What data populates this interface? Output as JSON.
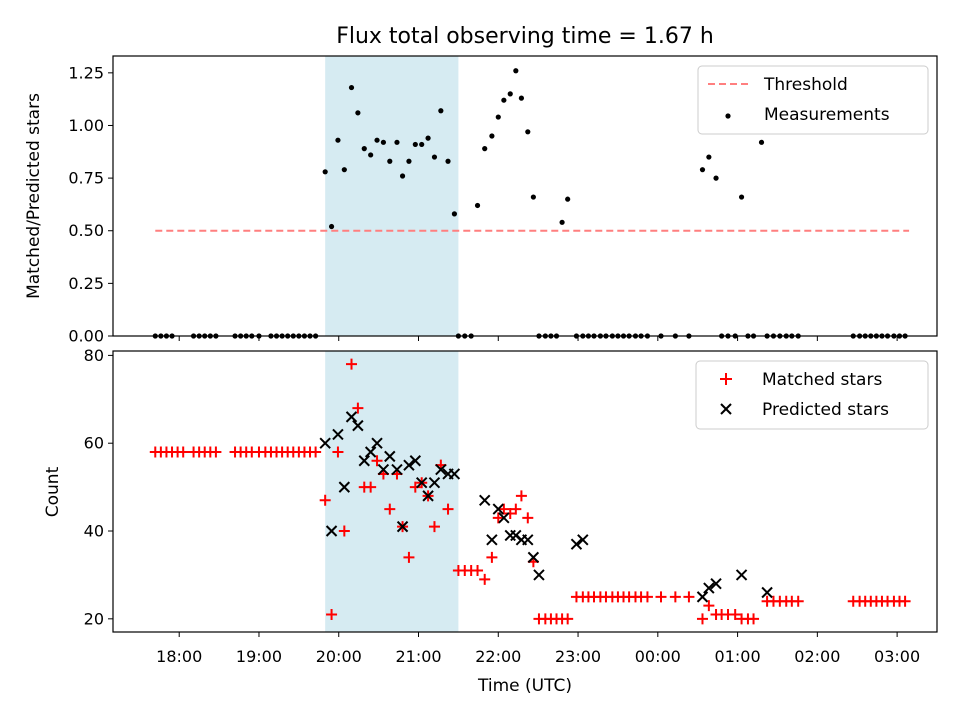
{
  "chart_data": [
    {
      "type": "scatter",
      "title": "Flux total observing time = 1.67 h",
      "xlabel": "",
      "ylabel": "Matched/Predicted stars",
      "xlim": [
        -0.83,
        9.5
      ],
      "ylim": [
        0,
        1.33
      ],
      "xticks": [
        0,
        1,
        2,
        3,
        4,
        5,
        6,
        7,
        8,
        9
      ],
      "yticks": [
        0.0,
        0.25,
        0.5,
        0.75,
        1.0,
        1.25
      ],
      "ytick_labels": [
        "0.00",
        "0.25",
        "0.50",
        "0.75",
        "1.00",
        "1.25"
      ],
      "shaded_region": {
        "x0": 1.83,
        "x1": 3.5,
        "color": "#add8e6"
      },
      "threshold": {
        "name": "Threshold",
        "y": 0.5,
        "x0": -0.3,
        "x1": 9.15,
        "color": "#ff7f7f"
      },
      "legend": {
        "position": "top-right",
        "entries": [
          "Threshold",
          "Measurements"
        ]
      },
      "series": [
        {
          "name": "Measurements",
          "color": "#000000",
          "marker": "dot",
          "x": [
            -0.3,
            -0.23,
            -0.16,
            -0.09,
            0.18,
            0.25,
            0.32,
            0.39,
            0.46,
            0.7,
            0.77,
            0.84,
            0.91,
            1.0,
            1.15,
            1.22,
            1.29,
            1.36,
            1.43,
            1.5,
            1.57,
            1.64,
            1.71,
            1.83,
            1.91,
            1.99,
            2.07,
            2.16,
            2.24,
            2.32,
            2.4,
            2.48,
            2.56,
            2.64,
            2.73,
            2.8,
            2.88,
            2.96,
            3.04,
            3.12,
            3.2,
            3.28,
            3.37,
            3.45,
            3.5,
            3.58,
            3.66,
            3.74,
            3.83,
            3.92,
            4.0,
            4.07,
            4.15,
            4.22,
            4.29,
            4.37,
            4.44,
            4.51,
            4.59,
            4.66,
            4.73,
            4.8,
            4.87,
            4.98,
            5.06,
            5.13,
            5.2,
            5.28,
            5.35,
            5.43,
            5.5,
            5.57,
            5.64,
            5.72,
            5.79,
            5.87,
            6.04,
            6.22,
            6.39,
            6.56,
            6.64,
            6.73,
            6.8,
            6.88,
            6.97,
            7.05,
            7.13,
            7.2,
            7.3,
            7.37,
            7.45,
            7.53,
            7.61,
            7.68,
            7.76,
            8.45,
            8.53,
            8.6,
            8.67,
            8.74,
            8.81,
            8.88,
            8.96,
            9.03,
            9.1
          ],
          "y": [
            0,
            0,
            0,
            0,
            0,
            0,
            0,
            0,
            0,
            0,
            0,
            0,
            0,
            0,
            0,
            0,
            0,
            0,
            0,
            0,
            0,
            0,
            0,
            0.78,
            0.52,
            0.93,
            0.79,
            1.18,
            1.06,
            0.89,
            0.86,
            0.93,
            0.92,
            0.83,
            0.92,
            0.76,
            0.83,
            0.91,
            0.91,
            0.94,
            0.85,
            1.07,
            0.83,
            0.58,
            0,
            0,
            0,
            0.62,
            0.89,
            0.95,
            1.04,
            1.12,
            1.15,
            1.26,
            1.13,
            0.97,
            0.66,
            0,
            0,
            0,
            0,
            0.54,
            0.65,
            0,
            0,
            0,
            0,
            0,
            0,
            0,
            0,
            0,
            0,
            0,
            0,
            0,
            0,
            0,
            0,
            0.79,
            0.85,
            0.75,
            0,
            0,
            0,
            0.66,
            0,
            0,
            0.92,
            0,
            0,
            0,
            0,
            0,
            0,
            0,
            0,
            0,
            0,
            0,
            0,
            0,
            0,
            0,
            0
          ]
        }
      ]
    },
    {
      "type": "scatter",
      "title": "",
      "xlabel": "Time (UTC)",
      "ylabel": "Count",
      "xlim": [
        -0.83,
        9.5
      ],
      "ylim": [
        17,
        81
      ],
      "xticks": [
        0,
        1,
        2,
        3,
        4,
        5,
        6,
        7,
        8,
        9
      ],
      "xtick_labels": [
        "18:00",
        "19:00",
        "20:00",
        "21:00",
        "22:00",
        "23:00",
        "00:00",
        "01:00",
        "02:00",
        "03:00"
      ],
      "yticks": [
        20,
        40,
        60,
        80
      ],
      "ytick_labels": [
        "20",
        "40",
        "60",
        "80"
      ],
      "shaded_region": {
        "x0": 1.83,
        "x1": 3.5,
        "color": "#add8e6"
      },
      "legend": {
        "position": "top-right",
        "entries": [
          "Matched stars",
          "Predicted stars"
        ]
      },
      "series": [
        {
          "name": "Matched stars",
          "color": "#ff0000",
          "marker": "plus",
          "x": [
            -0.3,
            -0.23,
            -0.16,
            -0.09,
            -0.02,
            0.05,
            0.18,
            0.25,
            0.32,
            0.39,
            0.46,
            0.7,
            0.77,
            0.84,
            0.91,
            1.0,
            1.08,
            1.15,
            1.22,
            1.29,
            1.36,
            1.43,
            1.5,
            1.57,
            1.64,
            1.71,
            1.83,
            1.91,
            1.99,
            2.07,
            2.16,
            2.24,
            2.32,
            2.4,
            2.48,
            2.56,
            2.64,
            2.73,
            2.8,
            2.88,
            2.96,
            3.04,
            3.12,
            3.2,
            3.28,
            3.37,
            3.5,
            3.58,
            3.66,
            3.74,
            3.83,
            3.92,
            4.0,
            4.07,
            4.15,
            4.22,
            4.29,
            4.37,
            4.44,
            4.51,
            4.59,
            4.66,
            4.73,
            4.8,
            4.87,
            4.98,
            5.06,
            5.13,
            5.2,
            5.28,
            5.35,
            5.43,
            5.5,
            5.57,
            5.64,
            5.72,
            5.79,
            5.87,
            6.04,
            6.22,
            6.39,
            6.56,
            6.64,
            6.73,
            6.8,
            6.88,
            6.97,
            7.05,
            7.13,
            7.2,
            7.37,
            7.45,
            7.53,
            7.61,
            7.68,
            7.76,
            8.45,
            8.53,
            8.6,
            8.67,
            8.74,
            8.81,
            8.88,
            8.96,
            9.03,
            9.1
          ],
          "y": [
            58,
            58,
            58,
            58,
            58,
            58,
            58,
            58,
            58,
            58,
            58,
            58,
            58,
            58,
            58,
            58,
            58,
            58,
            58,
            58,
            58,
            58,
            58,
            58,
            58,
            58,
            47,
            21,
            58,
            40,
            78,
            68,
            50,
            50,
            56,
            53,
            45,
            53,
            41,
            34,
            50,
            51,
            48,
            41,
            55,
            45,
            31,
            31,
            31,
            31,
            29,
            34,
            43,
            45,
            44,
            45,
            48,
            43,
            33,
            20,
            20,
            20,
            20,
            20,
            20,
            25,
            25,
            25,
            25,
            25,
            25,
            25,
            25,
            25,
            25,
            25,
            25,
            25,
            25,
            25,
            25,
            20,
            23,
            21,
            21,
            21,
            21,
            20,
            20,
            20,
            24,
            24,
            24,
            24,
            24,
            24,
            24,
            24,
            24,
            24,
            24,
            24,
            24,
            24,
            24,
            24
          ]
        },
        {
          "name": "Predicted stars",
          "color": "#000000",
          "marker": "x",
          "x": [
            1.83,
            1.91,
            1.99,
            2.07,
            2.16,
            2.24,
            2.32,
            2.4,
            2.48,
            2.56,
            2.64,
            2.73,
            2.8,
            2.88,
            2.96,
            3.04,
            3.12,
            3.2,
            3.28,
            3.37,
            3.45,
            3.83,
            3.92,
            4.0,
            4.07,
            4.15,
            4.22,
            4.29,
            4.37,
            4.44,
            4.51,
            4.98,
            5.06,
            6.56,
            6.64,
            6.73,
            7.05,
            7.37
          ],
          "y": [
            60,
            40,
            62,
            50,
            66,
            64,
            56,
            58,
            60,
            54,
            57,
            54,
            41,
            55,
            56,
            51,
            48,
            51,
            54,
            53,
            53,
            47,
            38,
            45,
            43,
            39,
            39,
            38,
            38,
            34,
            30,
            37,
            38,
            25,
            27,
            28,
            30,
            26
          ]
        }
      ]
    }
  ]
}
